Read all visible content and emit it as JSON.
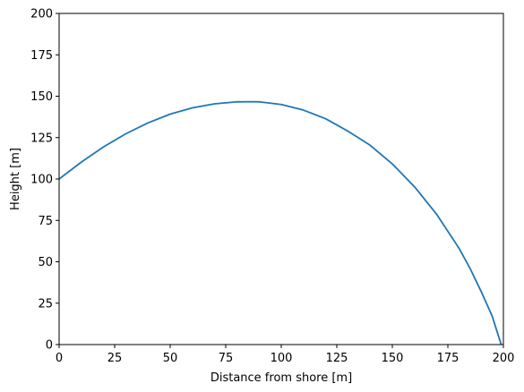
{
  "chart_data": {
    "type": "line",
    "title": "",
    "xlabel": "Distance from shore [m]",
    "ylabel": "Height [m]",
    "xlim": [
      0,
      200
    ],
    "ylim": [
      0,
      200
    ],
    "xticks": [
      0,
      25,
      50,
      75,
      100,
      125,
      150,
      175,
      200
    ],
    "yticks": [
      0,
      25,
      50,
      75,
      100,
      125,
      150,
      175,
      200
    ],
    "grid": false,
    "legend": "none",
    "series": [
      {
        "color": "#1f77b4",
        "x": [
          0,
          10,
          20,
          30,
          40,
          50,
          60,
          70,
          80,
          87,
          90,
          100,
          110,
          120,
          130,
          140,
          150,
          160,
          170,
          180,
          185,
          190,
          195,
          199
        ],
        "y": [
          100,
          110.2,
          119.4,
          127.3,
          133.9,
          139.2,
          143.0,
          145.4,
          146.6,
          146.7,
          146.6,
          145.0,
          141.6,
          136.4,
          128.9,
          120.4,
          109.1,
          95.3,
          78.6,
          58.2,
          46.0,
          32.0,
          17.0,
          0
        ]
      }
    ]
  }
}
